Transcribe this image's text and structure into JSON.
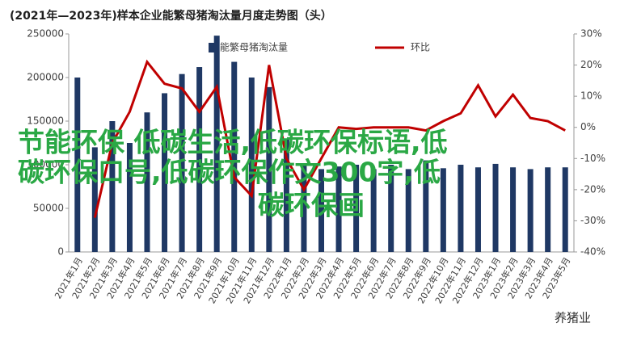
{
  "chart_data": {
    "type": "bar-line",
    "title": "(2021年—2023年)样本企业能繁母猪淘汰量月度走势图（头）",
    "categories": [
      "2021年1月",
      "2021年2月",
      "2021年3月",
      "2021年4月",
      "2021年5月",
      "2021年6月",
      "2021年7月",
      "2021年8月",
      "2021年9月",
      "2021年10月",
      "2021年11月",
      "2021年12月",
      "2022年1月",
      "2022年2月",
      "2022年3月",
      "2022年4月",
      "2022年5月",
      "2022年6月",
      "2022年7月",
      "2022年8月",
      "2022年9月",
      "2022年10月",
      "2022年11月",
      "2022年12月",
      "2023年1月",
      "2023年2月",
      "2023年3月",
      "2023年4月",
      "2023年5月"
    ],
    "series": [
      {
        "name": "能繁母猪淘汰量",
        "type": "bar",
        "color": "#1f3864",
        "values": [
          200000,
          120000,
          150000,
          125000,
          160000,
          182000,
          204000,
          212000,
          248000,
          218000,
          200000,
          189000,
          129000,
          100000,
          95000,
          98000,
          100000,
          95000,
          100000,
          95000,
          105000,
          96000,
          100000,
          97000,
          101000,
          97000,
          95000,
          97000,
          97000
        ]
      },
      {
        "name": "环比",
        "type": "line",
        "axis": "y2",
        "color": "#c00000",
        "values": [
          null,
          -29,
          -5,
          5,
          21,
          14,
          12.5,
          5,
          13,
          -16,
          -22,
          20,
          -10,
          -20,
          -10,
          0,
          -0.5,
          0,
          0,
          0,
          -1,
          2,
          4.5,
          13.5,
          3.5,
          10.5,
          3,
          2,
          -1
        ]
      }
    ],
    "ylim": [
      0,
      250000
    ],
    "yticks": [
      0,
      50000,
      100000,
      150000,
      200000,
      250000
    ],
    "y2lim": [
      -40,
      30
    ],
    "y2ticks": [
      {
        "value": -40,
        "label": "-40%"
      },
      {
        "value": -30,
        "label": "-30%"
      },
      {
        "value": -20,
        "label": "-20%"
      },
      {
        "value": -10,
        "label": "-10%"
      },
      {
        "value": 0,
        "label": "0%"
      },
      {
        "value": 10,
        "label": "10%"
      },
      {
        "value": 20,
        "label": "20%"
      },
      {
        "value": 30,
        "label": "30%"
      }
    ],
    "annotations": [
      "节能环保 低碳生活,低碳环保标语,低",
      "碳环保口号,低碳环保作文300字,低",
      "碳环保画"
    ],
    "watermark": "养猪业"
  }
}
